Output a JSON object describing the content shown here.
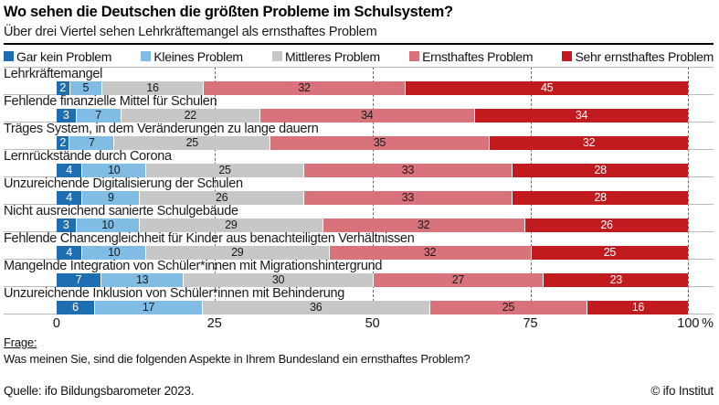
{
  "header": {
    "title": "Wo sehen die Deutschen die größten Probleme im Schulsystem?",
    "subtitle": "Über drei Viertel sehen Lehrkräftemangel als ernsthaftes Problem"
  },
  "chart_data": {
    "type": "bar",
    "orientation": "horizontal",
    "stacked": true,
    "unit": "%",
    "xlim": [
      0,
      100
    ],
    "x_ticks": [
      0,
      25,
      50,
      75,
      100
    ],
    "grid": "vertical-dashed",
    "legend_position": "top",
    "categories": [
      "Lehrkräftemangel",
      "Fehlende finanzielle Mittel für Schulen",
      "Träges System, in dem Veränderungen zu lange dauern",
      "Lernrückstände durch Corona",
      "Unzureichende Digitalisierung der Schulen",
      "Nicht ausreichend sanierte Schulgebäude",
      "Fehlende Chancengleichheit für Kinder aus benachteiligten Verhältnissen",
      "Mangelnde Integration von Schüler*innen mit Migrationshintergrund",
      "Unzureichende Inklusion von Schüler*innen mit Behinderung"
    ],
    "series": [
      {
        "name": "Gar kein Problem",
        "color": "#1e6fb2",
        "value_text_color": "#ffffff",
        "values": [
          2,
          3,
          2,
          4,
          4,
          3,
          4,
          7,
          6
        ]
      },
      {
        "name": "Kleines Problem",
        "color": "#80bce4",
        "value_text_color": "#1a1a1a",
        "values": [
          5,
          7,
          7,
          10,
          9,
          10,
          10,
          13,
          17
        ]
      },
      {
        "name": "Mittleres Problem",
        "color": "#c7c7c7",
        "value_text_color": "#1a1a1a",
        "values": [
          16,
          22,
          25,
          25,
          26,
          29,
          29,
          30,
          36
        ]
      },
      {
        "name": "Ernsthaftes Problem",
        "color": "#d9737b",
        "value_text_color": "#1a1a1a",
        "values": [
          32,
          34,
          35,
          33,
          33,
          32,
          32,
          27,
          25
        ]
      },
      {
        "name": "Sehr ernsthaftes Problem",
        "color": "#c11a1f",
        "value_text_color": "#ffffff",
        "values": [
          45,
          34,
          32,
          28,
          28,
          26,
          25,
          23,
          16
        ]
      }
    ]
  },
  "footer": {
    "question_label": "Frage:",
    "question_text": "Was meinen Sie, sind die folgenden Aspekte in Ihrem Bundesland ein ernsthaftes Problem?",
    "source": "Quelle: ifo Bildungsbarometer 2023.",
    "credit": "© ifo Institut"
  },
  "colors": {
    "separator_rule": "#000000",
    "row_line": "#bbbbbb",
    "gridline": "#666666",
    "background": "#ffffff"
  }
}
